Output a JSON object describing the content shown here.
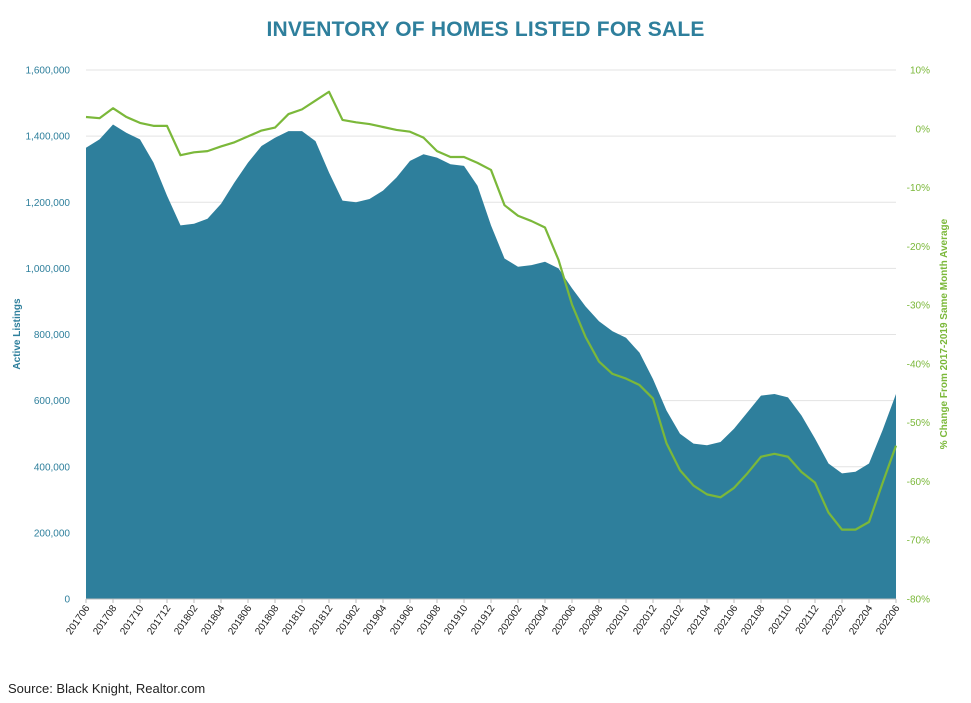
{
  "chart_data": {
    "type": "area",
    "title": "INVENTORY OF HOMES LISTED FOR SALE",
    "source": "Source: Black Knight, Realtor.com",
    "ylabel": "Active Listings",
    "y2label": "% Change From 2017-2019 Same Month Average",
    "ylim": [
      0,
      1600000
    ],
    "y2lim": [
      -80,
      10
    ],
    "yticks": [
      "0",
      "200,000",
      "400,000",
      "600,000",
      "800,000",
      "1,000,000",
      "1,200,000",
      "1,400,000",
      "1,600,000"
    ],
    "y2ticks": [
      "-80%",
      "-70%",
      "-60%",
      "-50%",
      "-40%",
      "-30%",
      "-20%",
      "-10%",
      "0%",
      "10%"
    ],
    "grid": true,
    "x": [
      "201706",
      "201707",
      "201708",
      "201709",
      "201710",
      "201711",
      "201712",
      "201801",
      "201802",
      "201803",
      "201804",
      "201805",
      "201806",
      "201807",
      "201808",
      "201809",
      "201810",
      "201811",
      "201812",
      "201901",
      "201902",
      "201903",
      "201904",
      "201905",
      "201906",
      "201907",
      "201908",
      "201909",
      "201910",
      "201911",
      "201912",
      "202001",
      "202002",
      "202003",
      "202004",
      "202005",
      "202006",
      "202007",
      "202008",
      "202009",
      "202010",
      "202011",
      "202012",
      "202101",
      "202102",
      "202103",
      "202104",
      "202105",
      "202106",
      "202107",
      "202108",
      "202109",
      "202110",
      "202111",
      "202112",
      "202201",
      "202202",
      "202203",
      "202204",
      "202205",
      "202206"
    ],
    "xtick_labels": [
      "201706",
      "201708",
      "201710",
      "201712",
      "201802",
      "201804",
      "201806",
      "201808",
      "201810",
      "201812",
      "201902",
      "201904",
      "201906",
      "201908",
      "201910",
      "201912",
      "202002",
      "202004",
      "202006",
      "202008",
      "202010",
      "202012",
      "202102",
      "202104",
      "202106",
      "202108",
      "202110",
      "202112",
      "202202",
      "202204",
      "202206"
    ],
    "series": [
      {
        "name": "Active Listings",
        "type": "area",
        "axis": "left",
        "color": "#2e7f9c",
        "values": [
          1365000,
          1390000,
          1435000,
          1410000,
          1390000,
          1320000,
          1220000,
          1130000,
          1135000,
          1150000,
          1195000,
          1260000,
          1320000,
          1370000,
          1395000,
          1415000,
          1415000,
          1385000,
          1290000,
          1205000,
          1200000,
          1210000,
          1235000,
          1275000,
          1325000,
          1345000,
          1335000,
          1315000,
          1310000,
          1250000,
          1130000,
          1030000,
          1005000,
          1010000,
          1020000,
          1000000,
          940000,
          885000,
          840000,
          810000,
          790000,
          745000,
          665000,
          570000,
          500000,
          470000,
          465000,
          475000,
          515000,
          565000,
          615000,
          620000,
          610000,
          555000,
          485000,
          410000,
          380000,
          385000,
          410000,
          510000,
          620000
        ]
      },
      {
        "name": "% Change From 2017-2019 Same Month Average",
        "type": "line",
        "axis": "right",
        "color": "#7bb83a",
        "values": [
          2,
          1.8,
          3.5,
          2,
          1,
          0.5,
          0.5,
          -4.5,
          -4,
          -3.8,
          -3,
          -2.3,
          -1.3,
          -0.3,
          0.2,
          2.5,
          3.3,
          4.8,
          6.3,
          1.5,
          1.1,
          0.8,
          0.3,
          -0.2,
          -0.5,
          -1.5,
          -3.8,
          -4.8,
          -4.8,
          -5.8,
          -7,
          -13,
          -14.8,
          -15.7,
          -16.8,
          -22.3,
          -29.9,
          -35.4,
          -39.6,
          -41.7,
          -42.5,
          -43.6,
          -45.9,
          -53.5,
          -58.1,
          -60.7,
          -62.2,
          -62.7,
          -61.1,
          -58.6,
          -55.8,
          -55.3,
          -55.8,
          -58.4,
          -60.2,
          -65.3,
          -68.2,
          -68.2,
          -66.9,
          -60.3,
          -53.9
        ]
      }
    ]
  }
}
